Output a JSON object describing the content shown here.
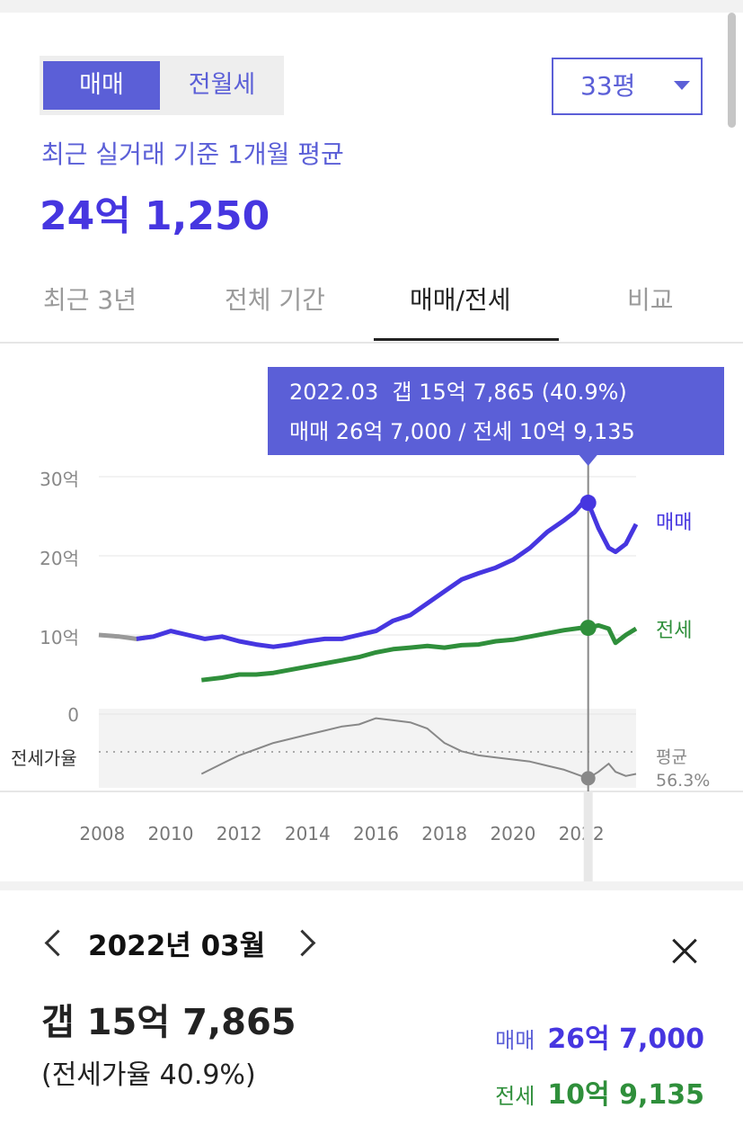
{
  "filters": {
    "trade_types": [
      "매매",
      "전월세"
    ],
    "active_trade_type": "매매",
    "size_select": "33평"
  },
  "summary": {
    "subtitle": "최근 실거래 기준 1개월 평균",
    "price": "24억 1,250"
  },
  "tabs": [
    {
      "label": "최근 3년",
      "active": false
    },
    {
      "label": "전체 기간",
      "active": false
    },
    {
      "label": "매매/전세",
      "active": true
    },
    {
      "label": "비교",
      "active": false
    }
  ],
  "tooltip": {
    "line1": "2022.03  갭 15억 7,865 (40.9%)",
    "line2": "매매 26억 7,000 / 전세 10억 9,135"
  },
  "chart_data": {
    "type": "line",
    "y_tick_labels": [
      "30억",
      "20억",
      "10억",
      "0"
    ],
    "x_tick_labels": [
      "2008",
      "2010",
      "2012",
      "2014",
      "2016",
      "2018",
      "2020",
      "2022"
    ],
    "ylim": [
      0,
      30
    ],
    "series": [
      {
        "name": "매매",
        "color": "#4636e0",
        "x": [
          2007.9,
          2008.5,
          2009.0,
          2009.5,
          2010.0,
          2010.5,
          2011.0,
          2011.5,
          2012.0,
          2012.5,
          2013.0,
          2013.5,
          2014.0,
          2014.5,
          2015.0,
          2015.5,
          2016.0,
          2016.5,
          2017.0,
          2017.5,
          2018.0,
          2018.5,
          2019.0,
          2019.5,
          2020.0,
          2020.5,
          2021.0,
          2021.5,
          2021.8,
          2022.0,
          2022.2,
          2022.5,
          2022.8,
          2023.0,
          2023.3,
          2023.6
        ],
        "y": [
          10.0,
          9.8,
          9.5,
          9.8,
          10.5,
          10.0,
          9.5,
          9.8,
          9.2,
          8.8,
          8.5,
          8.8,
          9.2,
          9.5,
          9.5,
          10.0,
          10.5,
          11.8,
          12.5,
          14.0,
          15.5,
          17.0,
          17.8,
          18.5,
          19.5,
          21.0,
          23.0,
          24.5,
          25.5,
          26.5,
          26.7,
          23.5,
          21.0,
          20.5,
          21.5,
          24.0
        ]
      },
      {
        "name": "전세",
        "color": "#2f8f3b",
        "x": [
          2010.9,
          2011.5,
          2012.0,
          2012.5,
          2013.0,
          2013.5,
          2014.0,
          2014.5,
          2015.0,
          2015.5,
          2016.0,
          2016.5,
          2017.0,
          2017.5,
          2018.0,
          2018.5,
          2019.0,
          2019.5,
          2020.0,
          2020.5,
          2021.0,
          2021.5,
          2022.0,
          2022.2,
          2022.5,
          2022.8,
          2023.0,
          2023.3,
          2023.6
        ],
        "y": [
          4.3,
          4.6,
          5.0,
          5.0,
          5.2,
          5.6,
          6.0,
          6.4,
          6.8,
          7.2,
          7.8,
          8.2,
          8.4,
          8.6,
          8.4,
          8.7,
          8.8,
          9.2,
          9.4,
          9.8,
          10.2,
          10.6,
          10.9,
          10.9,
          11.2,
          10.8,
          9.0,
          10.0,
          10.8
        ]
      },
      {
        "name": "전세가율",
        "color": "#888888",
        "x": [
          2010.9,
          2011.5,
          2012.0,
          2012.5,
          2013.0,
          2013.5,
          2014.0,
          2014.5,
          2015.0,
          2015.5,
          2016.0,
          2016.5,
          2017.0,
          2017.5,
          2018.0,
          2018.5,
          2019.0,
          2019.5,
          2020.0,
          2020.5,
          2021.0,
          2021.5,
          2022.0,
          2022.2,
          2022.5,
          2022.8,
          2023.0,
          2023.3,
          2023.6
        ],
        "y": [
          43,
          48,
          52,
          55,
          58,
          60,
          62,
          64,
          66,
          67,
          70,
          69,
          68,
          65,
          58,
          54,
          52,
          51,
          50,
          49,
          47,
          45,
          42,
          40.9,
          44,
          48,
          44,
          42,
          43
        ]
      }
    ],
    "ratio_average": {
      "label": "평균",
      "value": "56.3%"
    },
    "ratio_axis_label": "전세가율",
    "highlight": {
      "x": 2022.2,
      "sale": 26.7,
      "jeonse": 10.9,
      "ratio": 40.9
    }
  },
  "detail": {
    "month": "2022년 03월",
    "gap": "갭 15억 7,865",
    "ratio": "(전세가율 40.9%)",
    "sale_label": "매매",
    "sale_value": "26억 7,000",
    "jeonse_label": "전세",
    "jeonse_value": "10억 9,135"
  }
}
